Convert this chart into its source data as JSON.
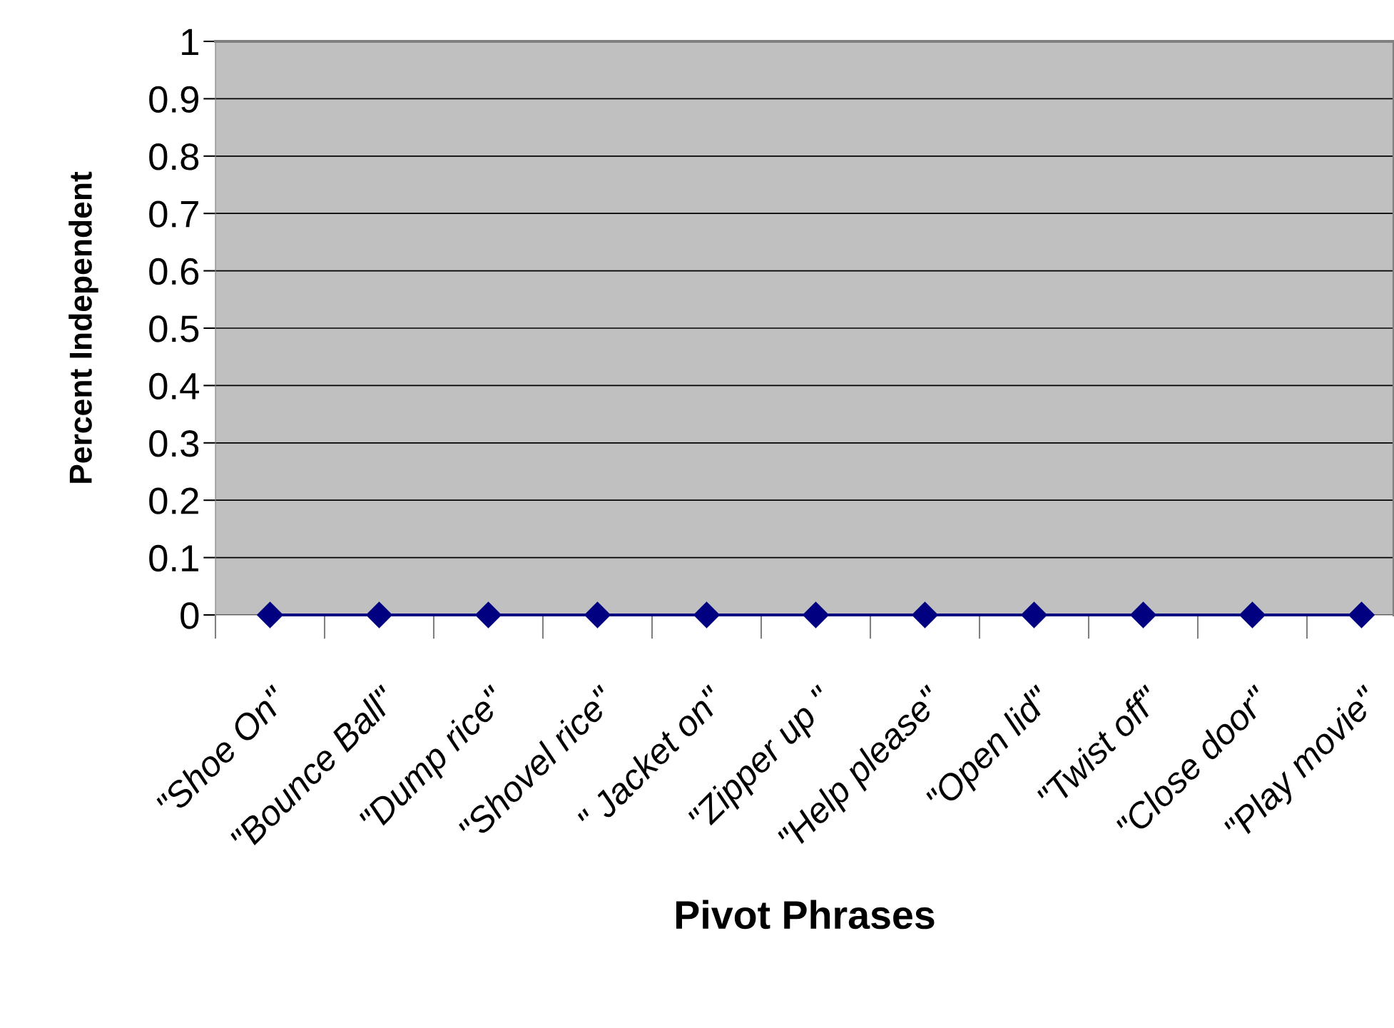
{
  "chart_data": {
    "type": "line",
    "xlabel": "Pivot Phrases",
    "ylabel": "Percent Independent",
    "categories": [
      "\"Shoe On\"",
      "\"Bounce Ball\"",
      "\"Dump rice\"",
      "\"Shovel rice\"",
      "\" Jacket on\"",
      "\"Zipper up \"",
      "\"Help please\"",
      "\"Open lid\"",
      "\"Twist off\"",
      "\"Close door\"",
      "\"Play movie\""
    ],
    "series": [
      {
        "color": "#000080",
        "values": [
          0,
          0,
          0,
          0,
          0,
          0,
          0,
          0,
          0,
          0,
          0
        ]
      }
    ],
    "ylim": [
      0,
      1
    ],
    "yticks": [
      0,
      0.1,
      0.2,
      0.3,
      0.4,
      0.5,
      0.6,
      0.7,
      0.8,
      0.9,
      1
    ],
    "grid": "y",
    "marker": "diamond",
    "line_style": "solid",
    "legend": false
  }
}
